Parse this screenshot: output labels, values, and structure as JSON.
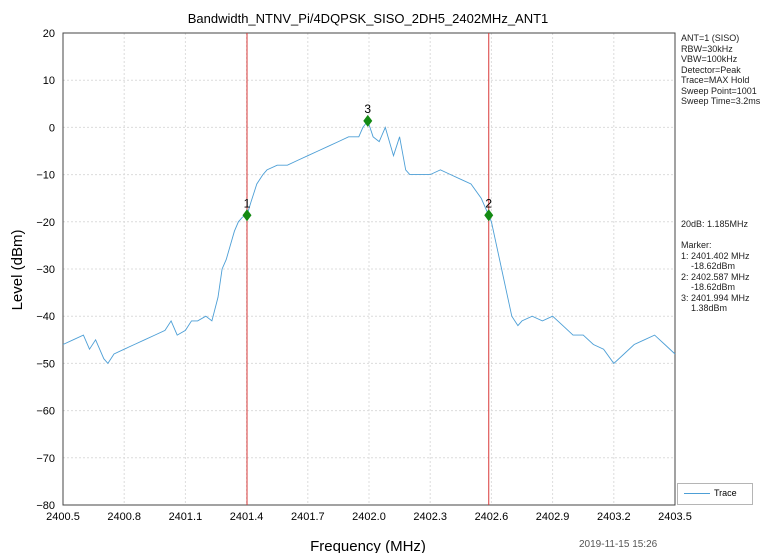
{
  "chart_data": {
    "type": "line",
    "title": "Bandwidth_NTNV_Pi/4DQPSK_SISO_2DH5_2402MHz_ANT1",
    "xlabel": "Frequency (MHz)",
    "ylabel": "Level (dBm)",
    "xlim": [
      2400.5,
      2403.5
    ],
    "ylim": [
      -80,
      20
    ],
    "x_ticks": [
      "2400.5",
      "2400.8",
      "2401.1",
      "2401.4",
      "2401.7",
      "2402.0",
      "2402.3",
      "2402.6",
      "2402.9",
      "2403.2",
      "2403.5"
    ],
    "y_ticks": [
      "20",
      "10",
      "0",
      "−10",
      "−20",
      "−30",
      "−40",
      "−50",
      "−60",
      "−70",
      "−80"
    ],
    "grid": true,
    "legend_position": "bottom-right",
    "series": [
      {
        "name": "Trace",
        "color": "#4d9fd6",
        "x": [
          2400.5,
          2400.55,
          2400.6,
          2400.63,
          2400.66,
          2400.7,
          2400.72,
          2400.75,
          2400.8,
          2400.85,
          2400.9,
          2400.95,
          2401.0,
          2401.03,
          2401.06,
          2401.1,
          2401.13,
          2401.16,
          2401.2,
          2401.23,
          2401.26,
          2401.28,
          2401.3,
          2401.32,
          2401.34,
          2401.36,
          2401.38,
          2401.402,
          2401.42,
          2401.45,
          2401.48,
          2401.5,
          2401.55,
          2401.6,
          2401.65,
          2401.7,
          2401.75,
          2401.8,
          2401.85,
          2401.9,
          2401.95,
          2401.97,
          2401.994,
          2402.02,
          2402.05,
          2402.08,
          2402.1,
          2402.12,
          2402.15,
          2402.18,
          2402.2,
          2402.25,
          2402.3,
          2402.35,
          2402.4,
          2402.45,
          2402.5,
          2402.55,
          2402.587,
          2402.6,
          2402.62,
          2402.65,
          2402.68,
          2402.7,
          2402.73,
          2402.75,
          2402.8,
          2402.85,
          2402.9,
          2402.95,
          2403.0,
          2403.05,
          2403.1,
          2403.15,
          2403.2,
          2403.25,
          2403.3,
          2403.35,
          2403.4,
          2403.45,
          2403.5
        ],
        "y": [
          -46,
          -45,
          -44,
          -47,
          -45,
          -49,
          -50,
          -48,
          -47,
          -46,
          -45,
          -44,
          -43,
          -41,
          -44,
          -43,
          -41,
          -41,
          -40,
          -41,
          -36,
          -30,
          -28,
          -25,
          -22,
          -20,
          -19,
          -18.62,
          -16,
          -12,
          -10,
          -9,
          -8,
          -8,
          -7,
          -6,
          -5,
          -4,
          -3,
          -2,
          -2,
          0,
          1.38,
          -2,
          -3,
          0,
          -3,
          -6,
          -2,
          -9,
          -10,
          -10,
          -10,
          -9,
          -10,
          -11,
          -12,
          -15,
          -18.62,
          -20,
          -24,
          -30,
          -36,
          -40,
          -42,
          -41,
          -40,
          -41,
          -40,
          -42,
          -44,
          -44,
          -46,
          -47,
          -50,
          -48,
          -46,
          -45,
          -44,
          -46,
          -48
        ]
      }
    ],
    "markers": [
      {
        "label": "1",
        "x": 2401.402,
        "y": -18.62
      },
      {
        "label": "2",
        "x": 2402.587,
        "y": -18.62
      },
      {
        "label": "3",
        "x": 2401.994,
        "y": 1.38
      }
    ],
    "vertical_lines": [
      2401.402,
      2402.587
    ],
    "marker_color": "#138a13",
    "vline_color": "#d93a3a"
  },
  "settings_text": [
    "ANT=1 (SISO)",
    "RBW=30kHz",
    "VBW=100kHz",
    "Detector=Peak",
    "Trace=MAX Hold",
    "Sweep Point=1001",
    "Sweep Time=3.2ms"
  ],
  "bandwidth_text": "20dB: 1.185MHz",
  "marker_text": [
    "Marker:",
    "1: 2401.402 MHz",
    "    -18.62dBm",
    "2: 2402.587 MHz",
    "    -18.62dBm",
    "3: 2401.994 MHz",
    "    1.38dBm"
  ],
  "legend_label": "Trace",
  "timestamp": "2019-11-15 15:26"
}
